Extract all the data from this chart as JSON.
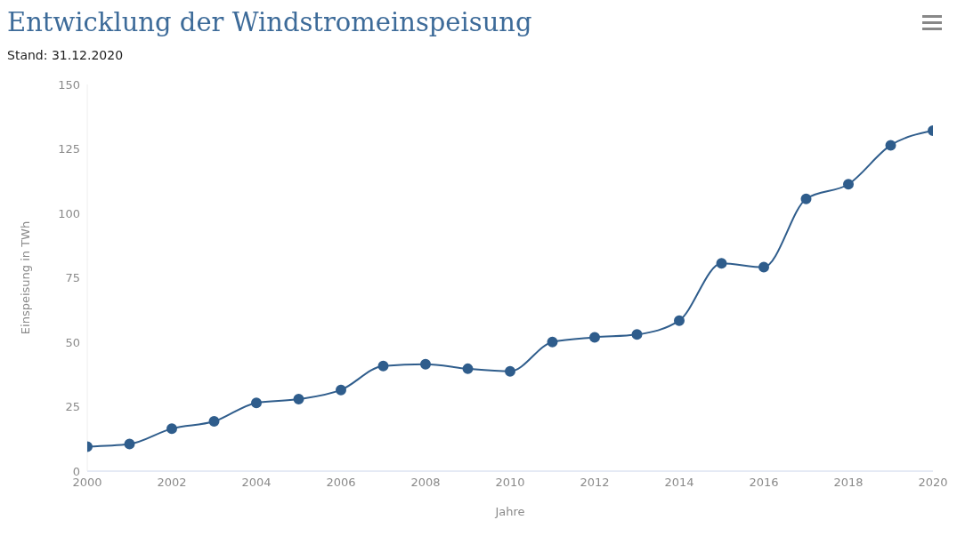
{
  "chart_data": {
    "type": "line",
    "title": "Entwicklung der Windstromeinspeisung",
    "subtitle": "Stand: 31.12.2020",
    "xlabel": "Jahre",
    "ylabel": "Einspeisung in TWh",
    "x": [
      2000,
      2001,
      2002,
      2003,
      2004,
      2005,
      2006,
      2007,
      2008,
      2009,
      2010,
      2011,
      2012,
      2013,
      2014,
      2015,
      2016,
      2017,
      2018,
      2019,
      2020
    ],
    "series": [
      {
        "color": "#2f5d8c",
        "values": [
          9.5,
          10.5,
          16.5,
          19.3,
          26.5,
          27.9,
          31.5,
          40.8,
          41.5,
          39.7,
          38.7,
          50.1,
          51.9,
          53,
          58.4,
          80.6,
          79.1,
          105.6,
          111.3,
          126.4,
          132.1
        ]
      }
    ],
    "xlim": [
      2000,
      2020
    ],
    "xticks": [
      2000,
      2002,
      2004,
      2006,
      2008,
      2010,
      2012,
      2014,
      2016,
      2018,
      2020
    ],
    "ylim": [
      0,
      150
    ],
    "yticks": [
      0,
      25,
      50,
      75,
      100,
      125,
      150
    ],
    "grid": false,
    "legend": false,
    "marker": "circle",
    "line_style": "solid"
  }
}
